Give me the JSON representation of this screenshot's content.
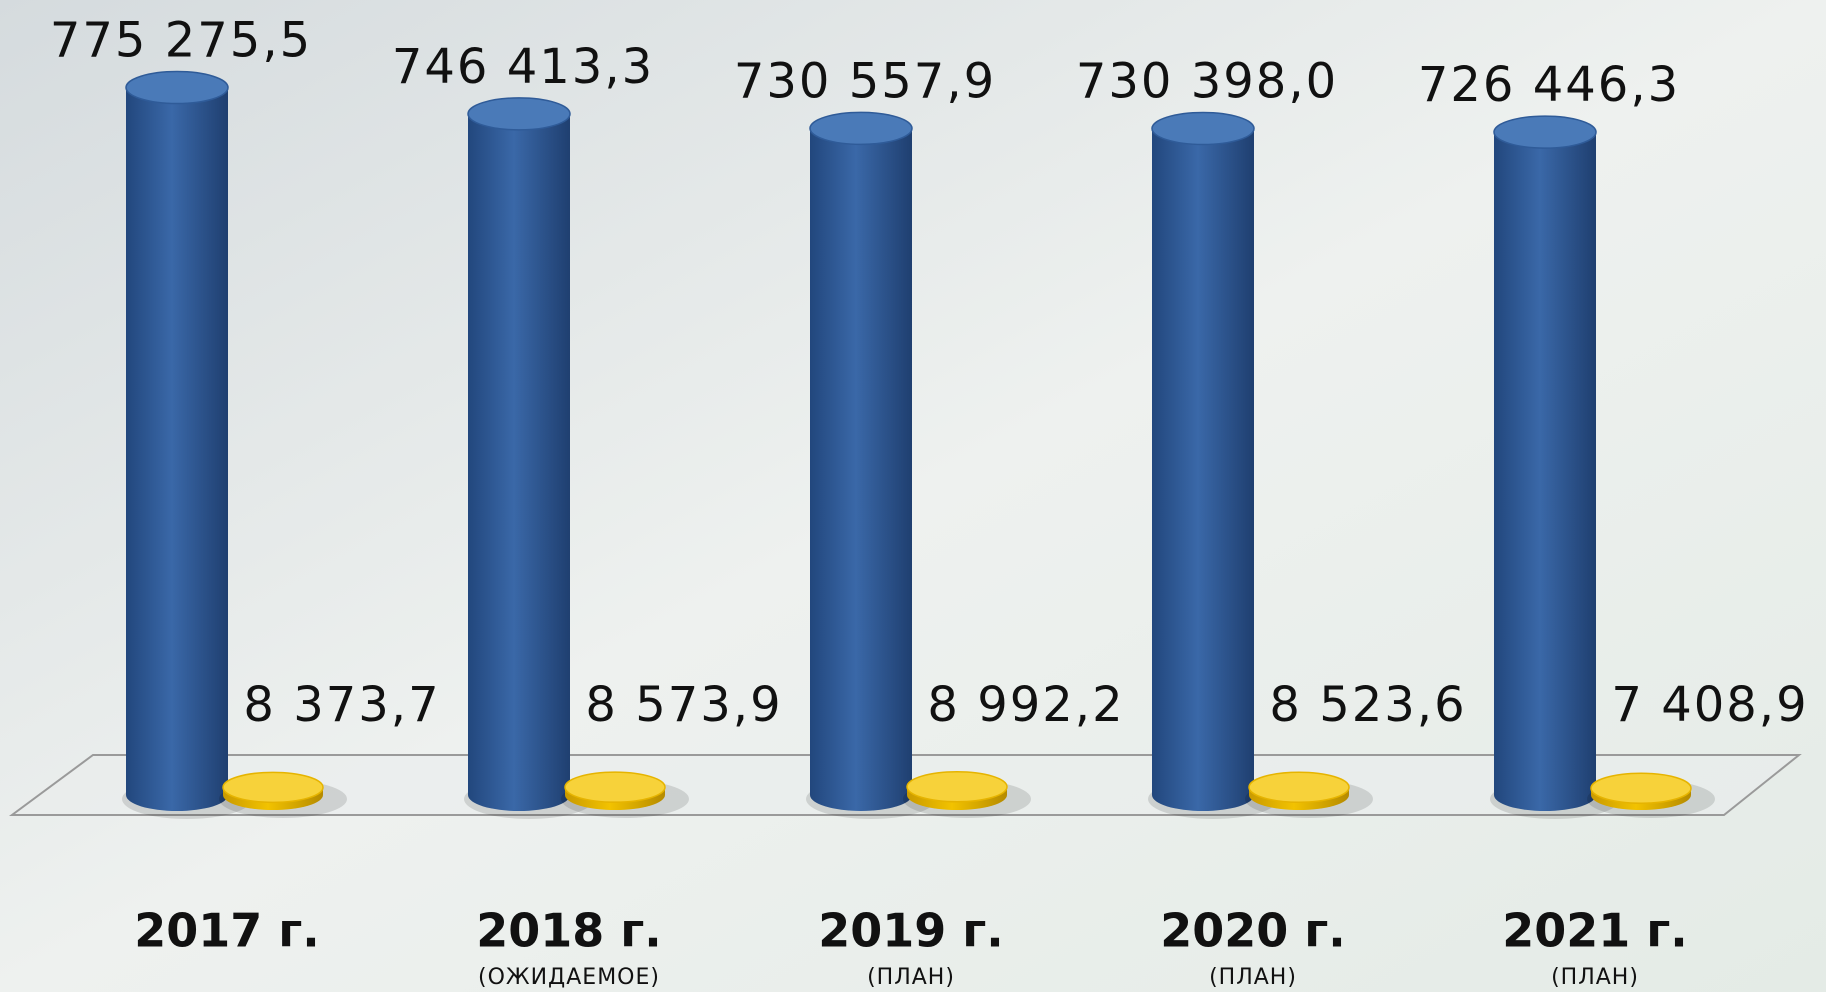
{
  "chart_data": {
    "type": "cylinder",
    "categories": [
      "2017 г.",
      "2018 г.",
      "2019 г.",
      "2020 г.",
      "2021 г."
    ],
    "category_notes": [
      null,
      "(ОЖИДАЕМОЕ)",
      "(ПЛАН)",
      "(ПЛАН)",
      "(ПЛАН)"
    ],
    "ylim": [
      0,
      800000
    ],
    "series": [
      {
        "color": "#2f5b98",
        "values": [
          775275.5,
          746413.3,
          730557.9,
          730398.0,
          726446.3
        ],
        "value_labels": [
          "775 275,5",
          "746 413,3",
          "730 557,9",
          "730 398,0",
          "726 446,3"
        ]
      },
      {
        "color": "#e6b400",
        "values": [
          8373.7,
          8573.9,
          8992.2,
          8523.6,
          7408.9
        ],
        "value_labels": [
          "8 373,7",
          "8 573,9",
          "8 992,2",
          "8 523,6",
          "7 408,9"
        ]
      }
    ]
  }
}
